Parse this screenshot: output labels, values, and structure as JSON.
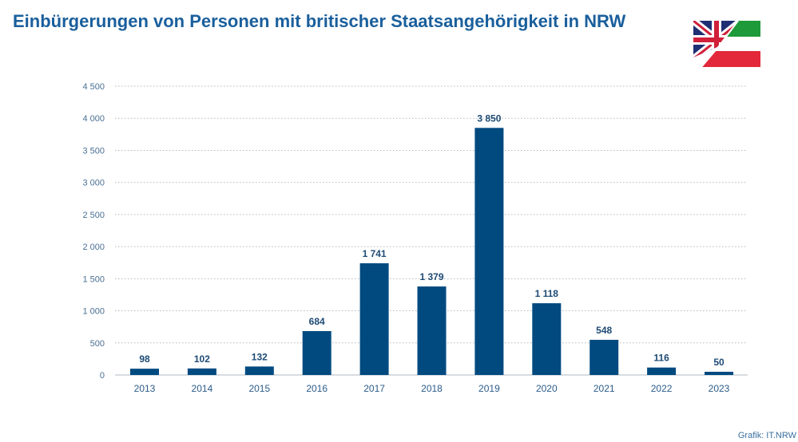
{
  "title": "Einbürgerungen von Personen mit britischer Staatsangehörigkeit in NRW",
  "source": "Grafik: IT.NRW",
  "logo_icon": "uk-nrw-flag-icon",
  "colors": {
    "bar": "#004a80",
    "title": "#1a5f9c",
    "grid": "#b0b8c0"
  },
  "chart_data": {
    "type": "bar",
    "title": "Einbürgerungen von Personen mit britischer Staatsangehörigkeit in NRW",
    "xlabel": "",
    "ylabel": "",
    "categories": [
      "2013",
      "2014",
      "2015",
      "2016",
      "2017",
      "2018",
      "2019",
      "2020",
      "2021",
      "2022",
      "2023"
    ],
    "values": [
      98,
      102,
      132,
      684,
      1741,
      1379,
      3850,
      1118,
      548,
      116,
      50
    ],
    "value_labels": [
      "98",
      "102",
      "132",
      "684",
      "1 741",
      "1 379",
      "3 850",
      "1 118",
      "548",
      "116",
      "50"
    ],
    "ylim": [
      0,
      4500
    ],
    "yticks": [
      0,
      500,
      1000,
      1500,
      2000,
      2500,
      3000,
      3500,
      4000,
      4500
    ],
    "ytick_labels": [
      "0",
      "500",
      "1 000",
      "1 500",
      "2 000",
      "2 500",
      "3 000",
      "3 500",
      "4 000",
      "4 500"
    ],
    "grid": true,
    "grid_style": "dotted",
    "legend": "none"
  }
}
